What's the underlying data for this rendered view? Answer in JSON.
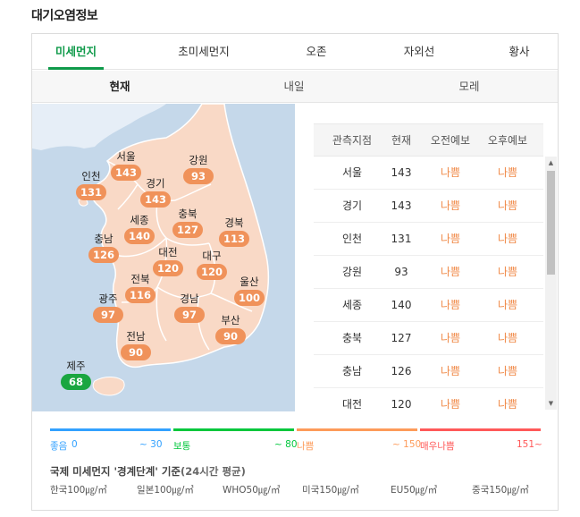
{
  "title": "대기오염정보",
  "tabs": [
    "미세먼지",
    "초미세먼지",
    "오존",
    "자외선",
    "황사"
  ],
  "active_tab": "미세먼지",
  "subtabs": [
    "현재",
    "내일",
    "모레"
  ],
  "active_subtab": "현재",
  "map": {
    "colors": {
      "bad": "#f0925a",
      "good": "#1aa640",
      "sea": "#c5d8ea",
      "land": "#f9d9c6",
      "border": "#ffffff"
    },
    "regions": [
      {
        "name": "서울",
        "value": "143",
        "level": "bad"
      },
      {
        "name": "인천",
        "value": "131",
        "level": "bad"
      },
      {
        "name": "경기",
        "value": "143",
        "level": "bad"
      },
      {
        "name": "강원",
        "value": "93",
        "level": "bad"
      },
      {
        "name": "충북",
        "value": "127",
        "level": "bad"
      },
      {
        "name": "세종",
        "value": "140",
        "level": "bad"
      },
      {
        "name": "경북",
        "value": "113",
        "level": "bad"
      },
      {
        "name": "충남",
        "value": "126",
        "level": "bad"
      },
      {
        "name": "대전",
        "value": "120",
        "level": "bad"
      },
      {
        "name": "대구",
        "value": "120",
        "level": "bad"
      },
      {
        "name": "전북",
        "value": "116",
        "level": "bad"
      },
      {
        "name": "울산",
        "value": "100",
        "level": "bad"
      },
      {
        "name": "광주",
        "value": "97",
        "level": "bad"
      },
      {
        "name": "경남",
        "value": "97",
        "level": "bad"
      },
      {
        "name": "부산",
        "value": "90",
        "level": "bad"
      },
      {
        "name": "전남",
        "value": "90",
        "level": "bad"
      },
      {
        "name": "제주",
        "value": "68",
        "level": "good"
      }
    ]
  },
  "table": {
    "headers": [
      "관측지점",
      "현재",
      "오전예보",
      "오후예보"
    ],
    "rows": [
      [
        "서울",
        "143",
        "나쁨",
        "나쁨"
      ],
      [
        "경기",
        "143",
        "나쁨",
        "나쁨"
      ],
      [
        "인천",
        "131",
        "나쁨",
        "나쁨"
      ],
      [
        "강원",
        "93",
        "나쁨",
        "나쁨"
      ],
      [
        "세종",
        "140",
        "나쁨",
        "나쁨"
      ],
      [
        "충북",
        "127",
        "나쁨",
        "나쁨"
      ],
      [
        "충남",
        "126",
        "나쁨",
        "나쁨"
      ],
      [
        "대전",
        "120",
        "나쁨",
        "나쁨"
      ]
    ],
    "scroll_up": "▲",
    "scroll_down": "▼"
  },
  "legend": {
    "items": [
      {
        "label": "좋음",
        "range_start": "0",
        "range_end": "~ 30",
        "color": "#32a1ff"
      },
      {
        "label": "보통",
        "range_start": "",
        "range_end": "~ 80",
        "color": "#00c73c"
      },
      {
        "label": "나쁨",
        "range_start": "",
        "range_end": "~ 150",
        "color": "#fd9b5a"
      },
      {
        "label": "매우나쁨",
        "range_start": "",
        "range_end": "151~",
        "color": "#ff5959"
      }
    ]
  },
  "standard": {
    "title": "국제 미세먼지 '경계단계' 기준",
    "subtitle": "(24시간 평균)",
    "items": [
      "한국100㎍/㎥",
      "일본100㎍/㎥",
      "WHO50㎍/㎥",
      "미국150㎍/㎥",
      "EU50㎍/㎥",
      "중국150㎍/㎥"
    ]
  }
}
